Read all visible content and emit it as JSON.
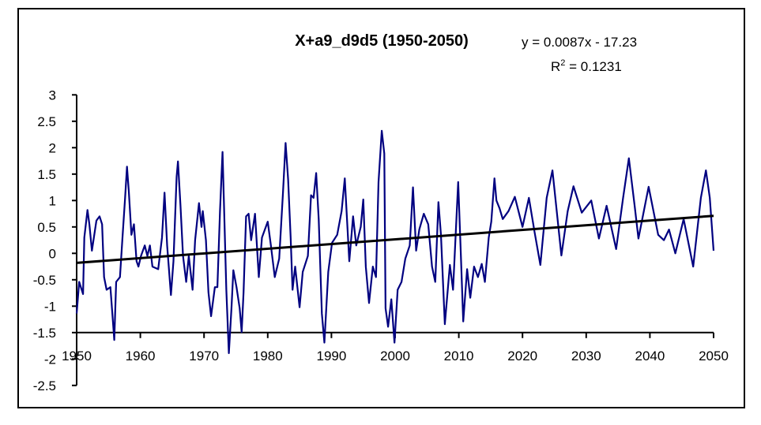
{
  "chart_data": {
    "type": "line",
    "title": "X+a9_d9d5 (1950-2050)",
    "xlabel": "",
    "ylabel": "",
    "xlim": [
      1950,
      2050
    ],
    "ylim": [
      -2.5,
      3
    ],
    "x_axis_crosses_at": -1.5,
    "grid": false,
    "legend": "none",
    "x_ticks": [
      "1950",
      "1960",
      "1970",
      "1980",
      "1990",
      "2000",
      "2010",
      "2020",
      "2030",
      "2040",
      "2050"
    ],
    "y_ticks": [
      "3",
      "2.5",
      "2",
      "1.5",
      "1",
      "0.5",
      "0",
      "-0.5",
      "-1",
      "-1.5",
      "-2",
      "-2.5"
    ],
    "series": [
      {
        "color": "#000080",
        "points": [
          [
            1950.0,
            -1.14
          ],
          [
            1950.4,
            -0.54
          ],
          [
            1951.0,
            -0.77
          ],
          [
            1951.2,
            0.3
          ],
          [
            1951.7,
            0.82
          ],
          [
            1952.0,
            0.55
          ],
          [
            1952.4,
            0.05
          ],
          [
            1953.1,
            0.62
          ],
          [
            1953.6,
            0.7
          ],
          [
            1954.0,
            0.55
          ],
          [
            1954.3,
            -0.45
          ],
          [
            1954.7,
            -0.69
          ],
          [
            1955.3,
            -0.64
          ],
          [
            1955.7,
            -1.29
          ],
          [
            1955.9,
            -1.64
          ],
          [
            1956.2,
            -0.54
          ],
          [
            1956.8,
            -0.45
          ],
          [
            1957.2,
            0.3
          ],
          [
            1957.6,
            1.05
          ],
          [
            1957.9,
            1.64
          ],
          [
            1958.2,
            1.15
          ],
          [
            1958.6,
            0.35
          ],
          [
            1959.0,
            0.55
          ],
          [
            1959.4,
            -0.15
          ],
          [
            1959.7,
            -0.25
          ],
          [
            1960.1,
            -0.05
          ],
          [
            1960.7,
            0.15
          ],
          [
            1961.1,
            -0.05
          ],
          [
            1961.5,
            0.15
          ],
          [
            1961.9,
            -0.25
          ],
          [
            1962.8,
            -0.3
          ],
          [
            1963.4,
            0.3
          ],
          [
            1963.8,
            1.15
          ],
          [
            1964.2,
            0.15
          ],
          [
            1964.8,
            -0.79
          ],
          [
            1965.2,
            -0.15
          ],
          [
            1965.7,
            1.45
          ],
          [
            1965.9,
            1.74
          ],
          [
            1966.3,
            0.9
          ],
          [
            1966.7,
            -0.05
          ],
          [
            1967.2,
            -0.54
          ],
          [
            1967.6,
            -0.05
          ],
          [
            1968.2,
            -0.69
          ],
          [
            1968.6,
            0.25
          ],
          [
            1969.2,
            0.95
          ],
          [
            1969.6,
            0.5
          ],
          [
            1969.8,
            0.8
          ],
          [
            1970.3,
            0.25
          ],
          [
            1970.7,
            -0.74
          ],
          [
            1971.1,
            -1.19
          ],
          [
            1971.7,
            -0.64
          ],
          [
            1972.1,
            -0.64
          ],
          [
            1972.5,
            0.8
          ],
          [
            1972.9,
            1.92
          ],
          [
            1973.1,
            1.05
          ],
          [
            1973.5,
            -0.69
          ],
          [
            1973.9,
            -1.89
          ],
          [
            1974.3,
            -1.04
          ],
          [
            1974.6,
            -0.32
          ],
          [
            1975.1,
            -0.64
          ],
          [
            1975.6,
            -1.04
          ],
          [
            1975.9,
            -1.49
          ],
          [
            1976.2,
            -0.74
          ],
          [
            1976.6,
            0.7
          ],
          [
            1977.0,
            0.75
          ],
          [
            1977.4,
            0.25
          ],
          [
            1978.0,
            0.75
          ],
          [
            1978.6,
            -0.45
          ],
          [
            1979.1,
            0.3
          ],
          [
            1980.0,
            0.6
          ],
          [
            1980.5,
            0.15
          ],
          [
            1981.1,
            -0.45
          ],
          [
            1981.8,
            -0.1
          ],
          [
            1982.4,
            1.15
          ],
          [
            1982.8,
            2.09
          ],
          [
            1983.2,
            1.4
          ],
          [
            1983.6,
            0.3
          ],
          [
            1983.9,
            -0.69
          ],
          [
            1984.3,
            -0.25
          ],
          [
            1985.0,
            -1.02
          ],
          [
            1985.5,
            -0.35
          ],
          [
            1986.3,
            -0.05
          ],
          [
            1986.8,
            1.1
          ],
          [
            1987.2,
            1.05
          ],
          [
            1987.6,
            1.52
          ],
          [
            1988.0,
            0.65
          ],
          [
            1988.5,
            -1.14
          ],
          [
            1988.9,
            -1.69
          ],
          [
            1989.5,
            -0.35
          ],
          [
            1990.1,
            0.2
          ],
          [
            1990.9,
            0.35
          ],
          [
            1991.6,
            0.8
          ],
          [
            1992.1,
            1.42
          ],
          [
            1992.8,
            -0.15
          ],
          [
            1993.4,
            0.7
          ],
          [
            1993.9,
            0.15
          ],
          [
            1994.6,
            0.5
          ],
          [
            1995.0,
            1.02
          ],
          [
            1995.4,
            -0.25
          ],
          [
            1995.9,
            -0.94
          ],
          [
            1996.5,
            -0.25
          ],
          [
            1997.0,
            -0.45
          ],
          [
            1997.4,
            1.35
          ],
          [
            1997.9,
            2.32
          ],
          [
            1998.3,
            1.89
          ],
          [
            1998.5,
            -1.04
          ],
          [
            1998.9,
            -1.39
          ],
          [
            1999.4,
            -0.87
          ],
          [
            1999.9,
            -1.69
          ],
          [
            2000.4,
            -0.69
          ],
          [
            2001.0,
            -0.54
          ],
          [
            2001.6,
            -0.1
          ],
          [
            2002.3,
            0.15
          ],
          [
            2002.8,
            1.25
          ],
          [
            2003.3,
            0.05
          ],
          [
            2003.8,
            0.45
          ],
          [
            2004.5,
            0.75
          ],
          [
            2005.2,
            0.55
          ],
          [
            2005.8,
            -0.25
          ],
          [
            2006.3,
            -0.54
          ],
          [
            2006.8,
            0.97
          ],
          [
            2007.2,
            0.35
          ],
          [
            2007.8,
            -1.34
          ],
          [
            2008.6,
            -0.22
          ],
          [
            2009.1,
            -0.69
          ],
          [
            2009.9,
            1.35
          ],
          [
            2010.3,
            0.05
          ],
          [
            2010.7,
            -1.29
          ],
          [
            2011.3,
            -0.3
          ],
          [
            2011.8,
            -0.84
          ],
          [
            2012.4,
            -0.25
          ],
          [
            2013.0,
            -0.45
          ],
          [
            2013.6,
            -0.2
          ],
          [
            2014.1,
            -0.54
          ],
          [
            2014.7,
            0.3
          ],
          [
            2015.1,
            0.6
          ],
          [
            2015.6,
            1.42
          ],
          [
            2015.9,
            1.0
          ],
          [
            2016.4,
            0.85
          ],
          [
            2016.9,
            0.65
          ],
          [
            2017.8,
            0.8
          ],
          [
            2018.8,
            1.07
          ],
          [
            2020.0,
            0.5
          ],
          [
            2021.0,
            1.05
          ],
          [
            2021.9,
            0.4
          ],
          [
            2022.8,
            -0.22
          ],
          [
            2023.8,
            1.05
          ],
          [
            2024.7,
            1.57
          ],
          [
            2026.1,
            -0.04
          ],
          [
            2027.1,
            0.8
          ],
          [
            2028.0,
            1.27
          ],
          [
            2029.3,
            0.77
          ],
          [
            2030.8,
            1.0
          ],
          [
            2032.0,
            0.28
          ],
          [
            2033.2,
            0.9
          ],
          [
            2034.7,
            0.08
          ],
          [
            2035.8,
            1.05
          ],
          [
            2036.7,
            1.8
          ],
          [
            2037.6,
            0.9
          ],
          [
            2038.2,
            0.28
          ],
          [
            2039.8,
            1.26
          ],
          [
            2041.3,
            0.35
          ],
          [
            2042.2,
            0.25
          ],
          [
            2043.0,
            0.45
          ],
          [
            2044.0,
            0.0
          ],
          [
            2045.3,
            0.65
          ],
          [
            2046.8,
            -0.25
          ],
          [
            2048.0,
            1.05
          ],
          [
            2048.8,
            1.57
          ],
          [
            2049.4,
            1.05
          ],
          [
            2050.0,
            0.05
          ]
        ]
      }
    ],
    "trendline": {
      "type": "linear",
      "color": "#000000",
      "equation": "y = 0.0087x - 17.23",
      "r2_label": "R",
      "r2_sup": "2",
      "r2_value": " = 0.1231",
      "endpoints": [
        [
          1950,
          -0.18
        ],
        [
          2050,
          0.71
        ]
      ]
    }
  }
}
